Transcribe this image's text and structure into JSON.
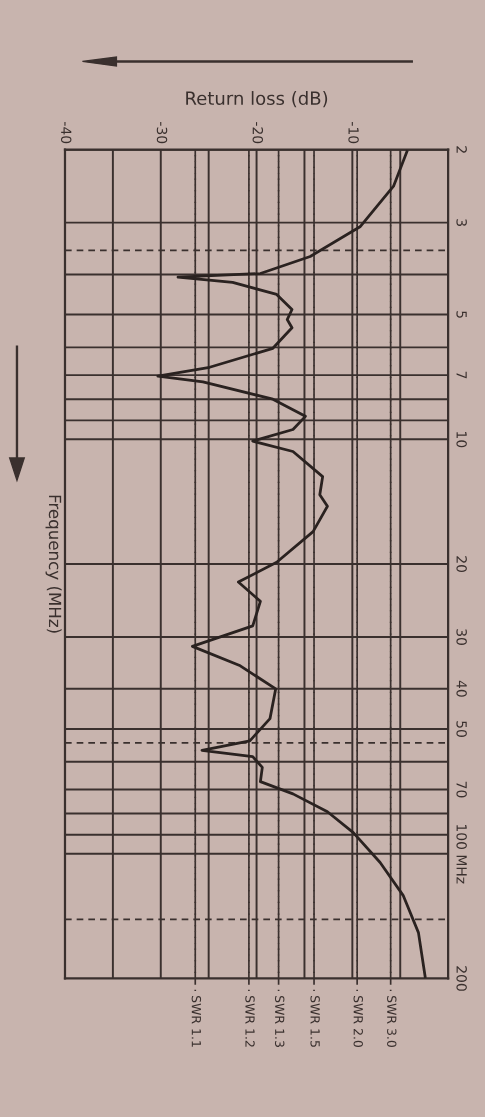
{
  "chart_data": {
    "type": "line",
    "xlabel": "Return loss (dB)",
    "ylabel": "Frequency (MHz)",
    "xlim": [
      -40,
      0
    ],
    "xticks": [
      -40,
      {
        "value": -35,
        "label": null
      },
      -30,
      {
        "value": -25,
        "label": null
      },
      -20,
      {
        "value": -15,
        "label": null
      },
      -10,
      {
        "value": -5,
        "label": null
      },
      {
        "value": 0,
        "label": null
      }
    ],
    "ylim": [
      200,
      2
    ],
    "log": "y",
    "yticks": [
      2,
      3,
      {
        "value": 4,
        "label": null
      },
      5,
      {
        "value": 6,
        "label": null
      },
      7,
      {
        "value": 8,
        "label": null
      },
      {
        "value": 9,
        "label": null
      },
      10,
      20,
      30,
      40,
      50,
      {
        "value": 60,
        "label": null
      },
      70,
      {
        "value": 80,
        "label": null
      },
      {
        "value": 90,
        "label": null
      },
      {
        "value": 100,
        "label": "100 MHz"
      },
      200
    ],
    "grid": true,
    "line_style": "solid",
    "marker": "none",
    "series": [
      {
        "color": "#2a2220",
        "x": [
          -4.3,
          -5.7,
          -9.2,
          -14.4,
          -19.6,
          -28.2,
          -22.5,
          -17.9,
          -16.3,
          -16.8,
          -16.3,
          -18.3,
          -24.9,
          -30.3,
          -25.6,
          -18.3,
          -14.9,
          -16.2,
          -20.4,
          -16.2,
          -13.1,
          -13.4,
          -12.6,
          -14.1,
          -17.9,
          -21.9,
          -19.6,
          -20.4,
          -26.7,
          -21.7,
          -18.0,
          -18.6,
          -20.7,
          -25.7,
          -20.4,
          -19.4,
          -19.6,
          -16.2,
          -12.6,
          -9.9,
          -7.1,
          -4.7,
          -3.1,
          -2.4
        ],
        "values": [
          2.02,
          2.45,
          3.07,
          3.62,
          3.98,
          4.06,
          4.18,
          4.47,
          4.86,
          5.14,
          5.38,
          6.03,
          6.7,
          7.04,
          7.27,
          8.0,
          8.8,
          9.47,
          10.1,
          10.7,
          12.3,
          13.6,
          14.5,
          16.7,
          19.8,
          22.1,
          24.6,
          28.2,
          31.6,
          35.2,
          40.0,
          47.2,
          53.4,
          56.3,
          58.3,
          61.9,
          67.0,
          71.7,
          79.2,
          88.9,
          105,
          126,
          155,
          198
        ]
      }
    ],
    "ref_lines": [
      {
        "axis": "x",
        "value": -26.4,
        "label": "SWR 1.1",
        "line_style": "dashed"
      },
      {
        "axis": "x",
        "value": -20.8,
        "label": "SWR 1.2",
        "line_style": "dashed"
      },
      {
        "axis": "x",
        "value": -17.7,
        "label": "SWR 1.3",
        "line_style": "dashed"
      },
      {
        "axis": "x",
        "value": -14.0,
        "label": "SWR 1.5",
        "line_style": "dashed"
      },
      {
        "axis": "x",
        "value": -9.5,
        "label": "SWR 2.0",
        "line_style": "dashed"
      },
      {
        "axis": "x",
        "value": -6.0,
        "label": "SWR 3.0",
        "line_style": "dashed"
      },
      {
        "axis": "y",
        "value": 3.5,
        "line_style": "dashed"
      },
      {
        "axis": "y",
        "value": 54,
        "line_style": "dashed"
      },
      {
        "axis": "y",
        "value": 144,
        "line_style": "dashed"
      }
    ]
  }
}
